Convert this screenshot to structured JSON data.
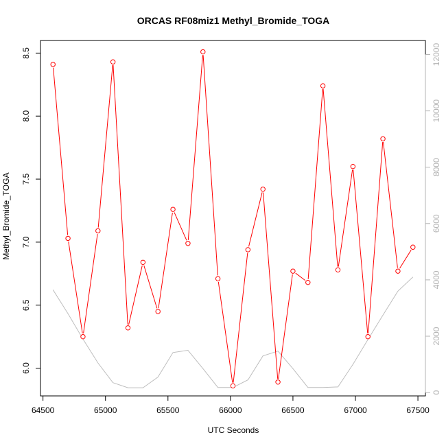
{
  "chart_data": {
    "type": "line",
    "title": "ORCAS RF08miz1 Methyl_Bromide_TOGA",
    "xlabel": "UTC Seconds",
    "ylabel": "Methyl_Bromide_TOGA",
    "xlim": [
      64480,
      67560
    ],
    "ylim": [
      5.78,
      8.6
    ],
    "y2lim": [
      -120,
      12500
    ],
    "x_ticks": [
      64500,
      65000,
      65500,
      66000,
      66500,
      67000,
      67500
    ],
    "y_ticks": [
      6.0,
      6.5,
      7.0,
      7.5,
      8.0,
      8.5
    ],
    "y2_ticks": [
      0,
      2000,
      4000,
      6000,
      8000,
      10000,
      12000
    ],
    "colors": {
      "series": "#ff0000",
      "secondary": "#bebebe",
      "axis": "#000000",
      "right_axis": "#b3b3b3"
    },
    "series": [
      {
        "x": [
          64580,
          64700,
          64820,
          64940,
          65060,
          65180,
          65300,
          65420,
          65540,
          65660,
          65780,
          65900,
          66020,
          66140,
          66260,
          66380,
          66500,
          66620,
          66740,
          66860,
          66980,
          67100,
          67220,
          67340,
          67460
        ],
        "values": [
          8.41,
          7.03,
          6.25,
          7.09,
          8.43,
          6.32,
          6.84,
          6.45,
          7.26,
          6.99,
          8.51,
          6.71,
          5.86,
          6.94,
          7.42,
          5.89,
          6.77,
          6.68,
          8.24,
          6.78,
          7.6,
          6.25,
          7.82,
          6.77,
          6.96
        ]
      }
    ],
    "secondary_series": {
      "x": [
        64580,
        64700,
        64820,
        64940,
        65060,
        65180,
        65300,
        65420,
        65540,
        65660,
        65780,
        65900,
        66020,
        66140,
        66260,
        66380,
        66500,
        66620,
        66740,
        66860,
        66980,
        67100,
        67220,
        67340,
        67460
      ],
      "values": [
        3650,
        2800,
        1900,
        1050,
        350,
        170,
        170,
        550,
        1420,
        1500,
        850,
        180,
        180,
        450,
        1300,
        1470,
        850,
        180,
        180,
        200,
        1000,
        1880,
        2750,
        3600,
        4100
      ]
    }
  }
}
